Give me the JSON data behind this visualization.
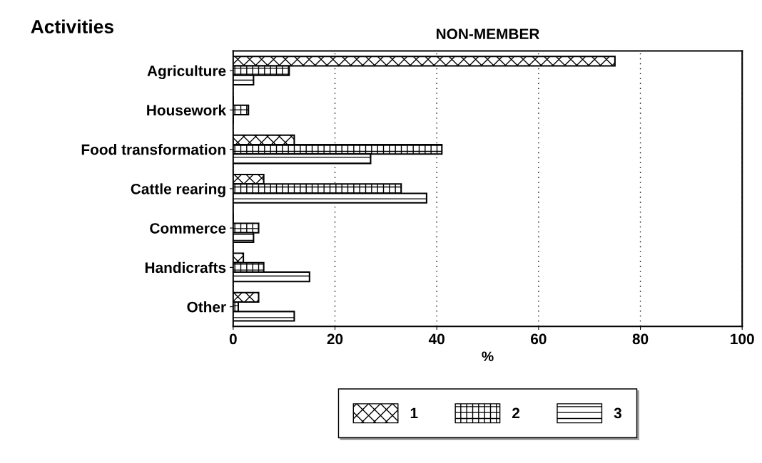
{
  "chart_data": {
    "type": "bar",
    "orientation": "horizontal",
    "title": "NON-MEMBER",
    "ylabel": "Activities",
    "xlabel": "%",
    "categories": [
      "Agriculture",
      "Housework",
      "Food transformation",
      "Cattle rearing",
      "Commerce",
      "Handicrafts",
      "Other"
    ],
    "series": [
      {
        "name": "1",
        "color": "#000000",
        "values": [
          75,
          0,
          12,
          6,
          0,
          2,
          5
        ]
      },
      {
        "name": "2",
        "color": "#000000",
        "values": [
          11,
          3,
          41,
          33,
          5,
          6,
          1
        ]
      },
      {
        "name": "3",
        "color": "#000000",
        "values": [
          4,
          0,
          27,
          38,
          4,
          15,
          12
        ]
      }
    ],
    "xlim": [
      0,
      100
    ],
    "xticks": [
      0,
      20,
      40,
      60,
      80,
      100
    ],
    "grid": "x",
    "legend": "bottom"
  }
}
